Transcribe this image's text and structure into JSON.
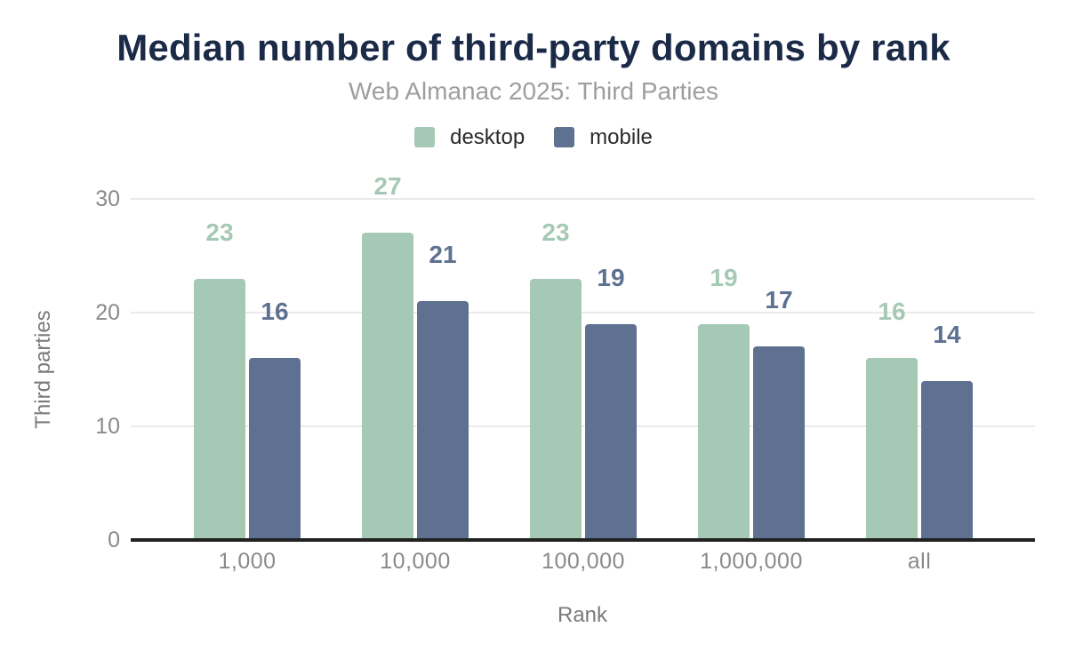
{
  "chart_data": {
    "type": "bar",
    "title": "Median number of third-party domains by rank",
    "subtitle": "Web Almanac 2025: Third Parties",
    "xlabel": "Rank",
    "ylabel": "Third parties",
    "categories": [
      "1,000",
      "10,000",
      "100,000",
      "1,000,000",
      "all"
    ],
    "series": [
      {
        "name": "desktop",
        "color": "#a6c9b6",
        "values": [
          23,
          27,
          23,
          19,
          16
        ]
      },
      {
        "name": "mobile",
        "color": "#5e7190",
        "values": [
          16,
          21,
          19,
          17,
          14
        ]
      }
    ],
    "y_ticks": [
      0,
      10,
      20,
      30
    ],
    "ylim": [
      0,
      32
    ],
    "grid": "horizontal-only",
    "legend_position": "top-center",
    "data_labels": "above-bars, colored same as series"
  },
  "colors": {
    "title": "#1b2a47",
    "subtitle": "#9e9e9e",
    "tick_label": "#8a8a8a",
    "axis_title": "#7a7a7a",
    "axis_line": "#212121",
    "gridline": "#eaeaea",
    "legend_text": "#2a2a2a",
    "background": "#ffffff"
  }
}
